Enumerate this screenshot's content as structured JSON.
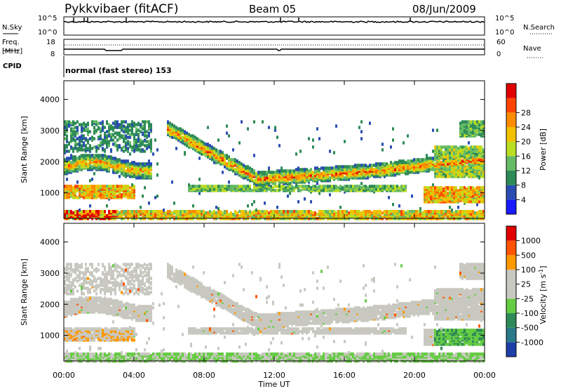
{
  "header": {
    "title": "Pykkvibaer (fitACF)",
    "beam": "Beam 05",
    "date": "08/Jun/2009"
  },
  "nsky_panel": {
    "left_label": "N.Sky",
    "left_ticks": [
      "10^5",
      "10^0"
    ],
    "right_label": "N.Search",
    "right_ticks": [
      "10^5",
      "10^0"
    ]
  },
  "freq_panel": {
    "left_label_line1": "Freq.",
    "left_label_line2": "[MHz]",
    "left_ticks": [
      "18",
      "8"
    ],
    "right_label": "Nave",
    "right_ticks": [
      "60",
      "0"
    ]
  },
  "cpid_panel": {
    "label": "CPID",
    "text": "normal (fast stereo) 153"
  },
  "x_axis": {
    "label": "Time UT",
    "ticks": [
      "00:00",
      "04:00",
      "08:00",
      "12:00",
      "16:00",
      "20:00",
      "00:00"
    ]
  },
  "chart_data": [
    {
      "type": "heatmap",
      "name": "power",
      "ylabel": "Slant Range [km]",
      "yticks": [
        1000,
        2000,
        3000,
        4000
      ],
      "ylim": [
        180,
        4600
      ],
      "xlim_hours": [
        0,
        24
      ],
      "colorbar": {
        "label": "Power [dB]",
        "ticks": [
          "4",
          "8",
          "12",
          "16",
          "20",
          "24",
          "28"
        ],
        "colors": [
          "#1a1aff",
          "#2a4db3",
          "#2e8b57",
          "#66bb66",
          "#bbdd22",
          "#f2c200",
          "#ff8c00",
          "#ff4400",
          "#e00000"
        ]
      }
    },
    {
      "type": "heatmap",
      "name": "velocity",
      "ylabel": "Slant Range [km]",
      "yticks": [
        1000,
        2000,
        3000,
        4000
      ],
      "ylim": [
        180,
        4600
      ],
      "xlim_hours": [
        0,
        24
      ],
      "colorbar": {
        "label": "Velocity [m s^-1]",
        "ticks": [
          "1000",
          "500",
          "100",
          "25",
          "-25",
          "-100",
          "-500",
          "-1000"
        ],
        "colors": [
          "#1f3fa8",
          "#2a7a8a",
          "#2e8b57",
          "#66cc44",
          "#c8c8c0",
          "#c8c8c0",
          "#ff9900",
          "#ff5500",
          "#e00000"
        ]
      }
    }
  ]
}
